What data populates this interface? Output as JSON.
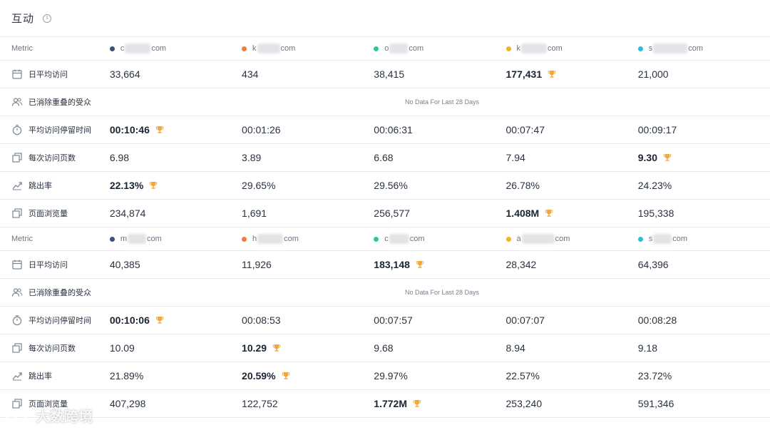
{
  "header": {
    "title": "互动",
    "info_icon": "i"
  },
  "accent": {
    "trophy": "#f0a73c"
  },
  "tables": [
    {
      "metric_header": "Metric",
      "sites": [
        {
          "prefix": "c",
          "suffix": "com",
          "color": "#3b4f7a"
        },
        {
          "prefix": "k",
          "suffix": "com",
          "color": "#f07b3c"
        },
        {
          "prefix": "o",
          "suffix": "com",
          "color": "#2fc69a"
        },
        {
          "prefix": "k",
          "suffix": "com",
          "color": "#f0b232"
        },
        {
          "prefix": "s",
          "suffix": "com",
          "color": "#27c0d6"
        }
      ],
      "rows": [
        {
          "icon": "calendar-icon",
          "label": "日平均访问",
          "values": [
            "33,664",
            "434",
            "38,415",
            "177,431",
            "21,000"
          ],
          "winner": 3
        },
        {
          "icon": "users-icon",
          "label": "已消除重叠的受众",
          "nodata": "No Data For Last 28 Days"
        },
        {
          "icon": "timer-icon",
          "label": "平均访问停留时间",
          "values": [
            "00:10:46",
            "00:01:26",
            "00:06:31",
            "00:07:47",
            "00:09:17"
          ],
          "winner": 0
        },
        {
          "icon": "pages-icon",
          "label": "每次访问页数",
          "values": [
            "6.98",
            "3.89",
            "6.68",
            "7.94",
            "9.30"
          ],
          "winner": 4
        },
        {
          "icon": "bounce-icon",
          "label": "跳出率",
          "values": [
            "22.13%",
            "29.65%",
            "29.56%",
            "26.78%",
            "24.23%"
          ],
          "winner": 0
        },
        {
          "icon": "pages-icon",
          "label": "页面浏览量",
          "values": [
            "234,874",
            "1,691",
            "256,577",
            "1.408M",
            "195,338"
          ],
          "winner": 3
        }
      ]
    },
    {
      "metric_header": "Metric",
      "sites": [
        {
          "prefix": "m",
          "suffix": "com",
          "color": "#3b4f7a"
        },
        {
          "prefix": "h",
          "suffix": "com",
          "color": "#f07b3c"
        },
        {
          "prefix": "c",
          "suffix": "com",
          "color": "#2fc69a"
        },
        {
          "prefix": "a",
          "suffix": "com",
          "color": "#f0b232"
        },
        {
          "prefix": "s",
          "suffix": "com",
          "color": "#27c0d6"
        }
      ],
      "rows": [
        {
          "icon": "calendar-icon",
          "label": "日平均访问",
          "values": [
            "40,385",
            "11,926",
            "183,148",
            "28,342",
            "64,396"
          ],
          "winner": 2
        },
        {
          "icon": "users-icon",
          "label": "已消除重叠的受众",
          "nodata": "No Data For Last 28 Days"
        },
        {
          "icon": "timer-icon",
          "label": "平均访问停留时间",
          "values": [
            "00:10:06",
            "00:08:53",
            "00:07:57",
            "00:07:07",
            "00:08:28"
          ],
          "winner": 0
        },
        {
          "icon": "pages-icon",
          "label": "每次访问页数",
          "values": [
            "10.09",
            "10.29",
            "9.68",
            "8.94",
            "9.18"
          ],
          "winner": 1
        },
        {
          "icon": "bounce-icon",
          "label": "跳出率",
          "values": [
            "21.89%",
            "20.59%",
            "29.97%",
            "22.57%",
            "23.72%"
          ],
          "winner": 1
        },
        {
          "icon": "pages-icon",
          "label": "页面浏览量",
          "values": [
            "407,298",
            "122,752",
            "1.772M",
            "253,240",
            "591,346"
          ],
          "winner": 2
        }
      ]
    }
  ],
  "watermark": {
    "text": "大数跨境"
  }
}
